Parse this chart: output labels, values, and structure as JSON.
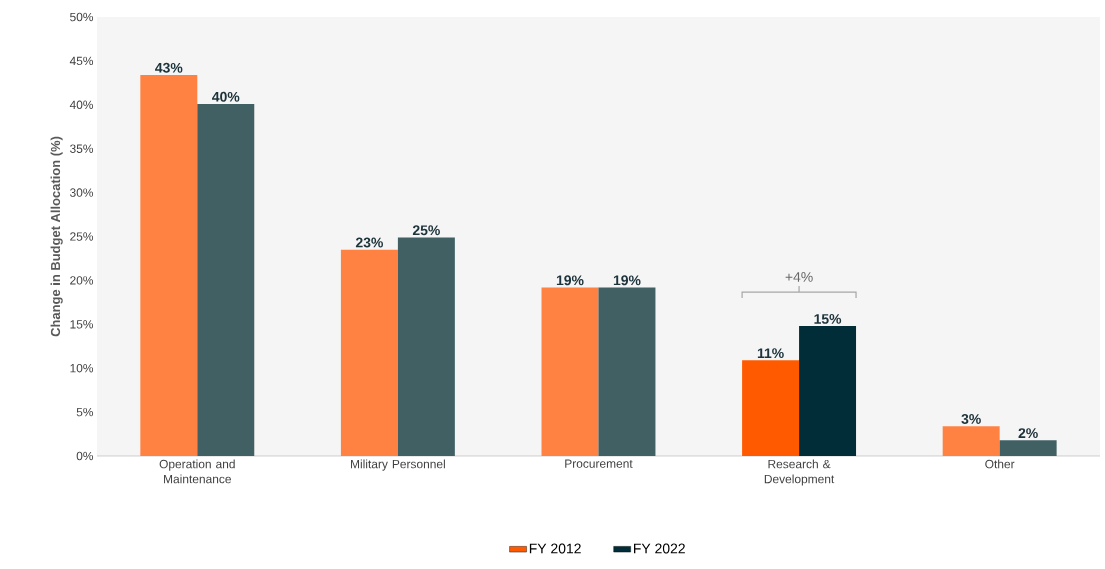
{
  "chart_data": {
    "type": "bar",
    "ylabel": "Change in Budget Allocation (%)",
    "categories": [
      "Operation and Maintenance",
      "Military Personnel",
      "Procurement",
      "Research & Development",
      "Other"
    ],
    "series": [
      {
        "name": "FY 2012",
        "color": "#ff5a00",
        "colors": [
          "#ff8243",
          "#ff8243",
          "#ff8243",
          "#ff5a00",
          "#ff8243"
        ],
        "values": [
          43.4,
          23.5,
          19.2,
          10.9,
          3.4
        ],
        "value_labels": [
          "43%",
          "23%",
          "19%",
          "11%",
          "3%"
        ]
      },
      {
        "name": "FY 2022",
        "color": "#002d37",
        "colors": [
          "#416064",
          "#416064",
          "#416064",
          "#002d37",
          "#416064"
        ],
        "values": [
          40.1,
          24.9,
          19.2,
          14.8,
          1.8
        ],
        "value_labels": [
          "40%",
          "25%",
          "19%",
          "15%",
          "2%"
        ]
      }
    ],
    "ylim": [
      0,
      50
    ],
    "yticks": [
      {
        "value": 0,
        "label": "0%"
      },
      {
        "value": 5,
        "label": "5%"
      },
      {
        "value": 10,
        "label": "10%"
      },
      {
        "value": 15,
        "label": "15%"
      },
      {
        "value": 20,
        "label": "20%"
      },
      {
        "value": 25,
        "label": "25%"
      },
      {
        "value": 30,
        "label": "30%"
      },
      {
        "value": 35,
        "label": "35%"
      },
      {
        "value": 40,
        "label": "40%"
      },
      {
        "value": 45,
        "label": "45%"
      },
      {
        "value": 50,
        "label": "50%"
      }
    ],
    "annotations": [
      "+4%"
    ],
    "legend": "bottom"
  }
}
